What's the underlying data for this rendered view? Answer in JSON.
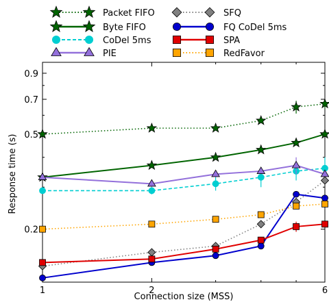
{
  "chart_data": {
    "type": "line",
    "xlabel": "Connection size (MSS)",
    "ylabel": "Response time (s)",
    "x_scale": "log",
    "y_scale": "log",
    "xlim": [
      1,
      6
    ],
    "ylim": [
      0.12,
      1.0
    ],
    "x_ticks": [
      1,
      2,
      6
    ],
    "x_tick_labels": [
      "1",
      "2",
      "6"
    ],
    "y_ticks": [
      0.2,
      0.5,
      0.7,
      0.9
    ],
    "y_tick_labels": [
      "0.2",
      "0.5",
      "0.7",
      "0.9"
    ],
    "grid": false,
    "legend_position": "top, outside plot, two columns",
    "x": [
      1,
      2,
      3,
      4,
      5,
      6
    ],
    "series": [
      {
        "name": "Packet FIFO",
        "color": "#006400",
        "marker": "star",
        "line": "dotted",
        "values": [
          0.5,
          0.53,
          0.53,
          0.57,
          0.65,
          0.67
        ],
        "err": [
          0,
          0,
          0,
          0.01,
          0.04,
          0.03
        ]
      },
      {
        "name": "Byte FIFO",
        "color": "#006400",
        "marker": "star",
        "line": "solid",
        "values": [
          0.33,
          0.37,
          0.4,
          0.43,
          0.46,
          0.5
        ],
        "err": [
          0,
          0,
          0,
          0,
          0,
          0
        ]
      },
      {
        "name": "CoDel 5ms",
        "color": "#00CED1",
        "marker": "circle",
        "line": "dashed",
        "values": [
          0.29,
          0.29,
          0.31,
          0.33,
          0.35,
          0.36
        ],
        "err": [
          0,
          0.01,
          0.02,
          0.03,
          0.03,
          0.04
        ]
      },
      {
        "name": "PIE",
        "color": "#9370DB",
        "marker": "triangle",
        "line": "solid",
        "values": [
          0.33,
          0.31,
          0.34,
          0.35,
          0.37,
          0.34
        ],
        "err": [
          0,
          0.01,
          0.01,
          0.01,
          0.03,
          0
        ]
      },
      {
        "name": "SFQ",
        "color": "#808080",
        "marker": "diamond",
        "line": "dotted",
        "values": [
          0.14,
          0.16,
          0.17,
          0.21,
          0.26,
          0.32
        ],
        "err": [
          0,
          0,
          0,
          0,
          0,
          0
        ]
      },
      {
        "name": "FQ CoDel 5ms",
        "color": "#0000CD",
        "marker": "circle",
        "line": "solid",
        "values": [
          0.125,
          0.145,
          0.155,
          0.17,
          0.28,
          0.27
        ],
        "err": [
          0,
          0,
          0,
          0,
          0,
          0
        ]
      },
      {
        "name": "SPA",
        "color": "#E00000",
        "marker": "square",
        "line": "solid",
        "values": [
          0.145,
          0.15,
          0.165,
          0.18,
          0.205,
          0.21
        ],
        "err": [
          0,
          0,
          0,
          0,
          0.01,
          0
        ]
      },
      {
        "name": "RedFavor",
        "color": "#FFA500",
        "marker": "square",
        "line": "dotted",
        "values": [
          0.2,
          0.21,
          0.22,
          0.23,
          0.25,
          0.255
        ],
        "err": [
          0,
          0,
          0,
          0,
          0,
          0
        ]
      }
    ]
  }
}
